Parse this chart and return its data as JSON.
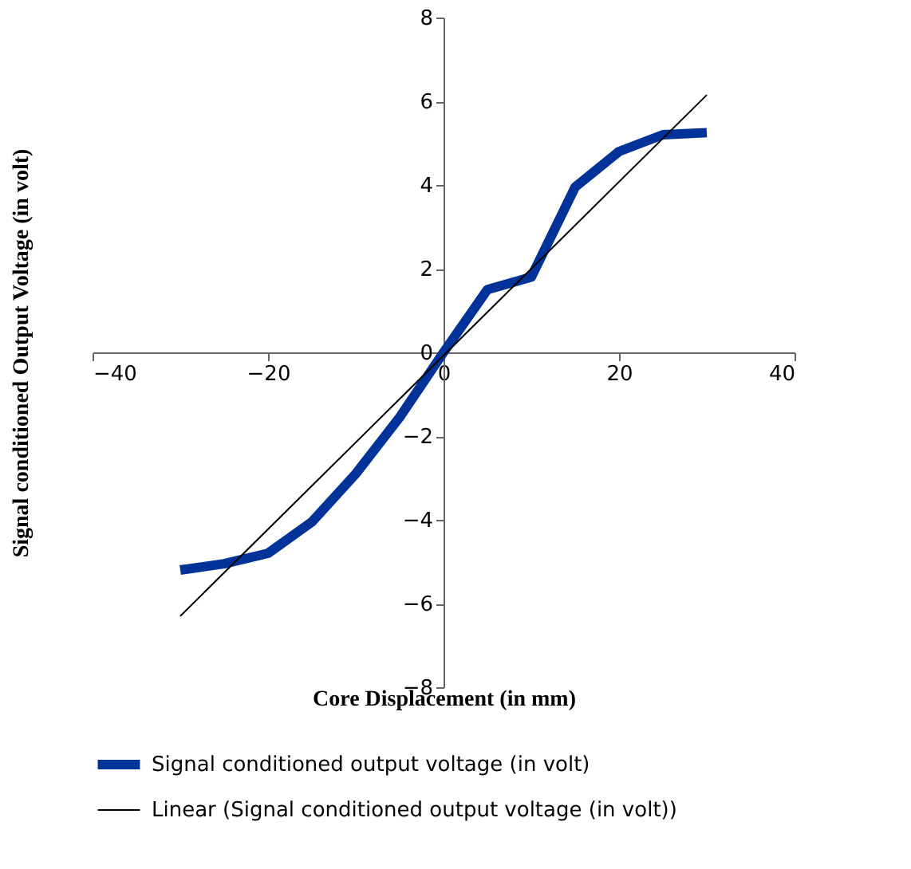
{
  "chart_data": {
    "type": "line",
    "xlabel": "Core Displacement (in mm)",
    "ylabel": "Signal conditioned Output Voltage (in volt)",
    "xlim": [
      -40,
      40
    ],
    "xticks": [
      -40,
      -20,
      0,
      20,
      40
    ],
    "ylim": [
      -8,
      8
    ],
    "yticks": [
      -8,
      -6,
      -4,
      -2,
      0,
      2,
      4,
      6,
      8
    ],
    "grid": false,
    "legend": "bottom",
    "series": [
      {
        "name": "Signal conditioned output voltage  (in volt)",
        "color": "#003399",
        "x": [
          -30,
          -25,
          -20,
          -15,
          -10,
          -5,
          0,
          5,
          10,
          15,
          20,
          25,
          30
        ],
        "values": [
          -5.2,
          -5.05,
          -4.8,
          -4.05,
          -2.9,
          -1.55,
          0,
          1.5,
          1.8,
          3.95,
          4.8,
          5.2,
          5.25
        ]
      },
      {
        "name": "Linear (Signal conditioned output voltage  (in volt))",
        "color": "#000000",
        "x": [
          -30,
          30
        ],
        "values": [
          -6.3,
          6.15
        ]
      }
    ]
  }
}
